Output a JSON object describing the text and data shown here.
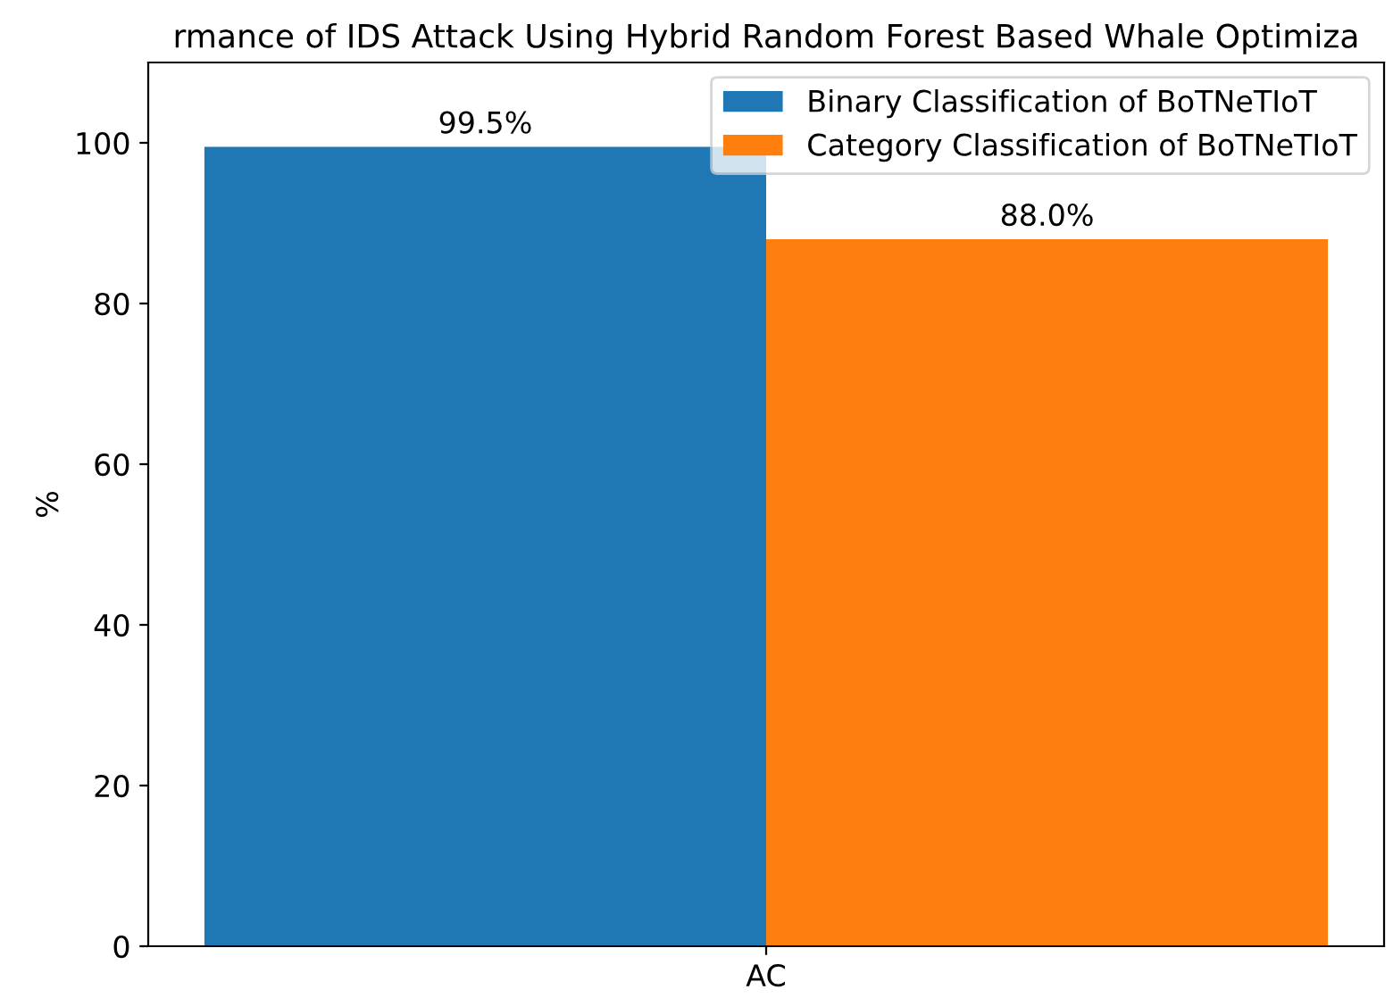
{
  "chart_data": {
    "type": "bar",
    "title": "rmance of IDS Attack Using Hybrid Random Forest Based Whale Optimiza",
    "ylabel": "%",
    "categories": [
      "AC"
    ],
    "series": [
      {
        "name": "Binary Classification of BoTNeTIoT",
        "color": "#1f77b4",
        "values": [
          99.5
        ],
        "value_labels": [
          "99.5%"
        ]
      },
      {
        "name": "Category Classification of BoTNeTIoT",
        "color": "#ff7f0e",
        "values": [
          88.0
        ],
        "value_labels": [
          "88.0%"
        ]
      }
    ],
    "ylim": [
      0,
      110
    ],
    "yticks": [
      0,
      20,
      40,
      60,
      80,
      100
    ],
    "grid": false,
    "legend": "top right"
  }
}
